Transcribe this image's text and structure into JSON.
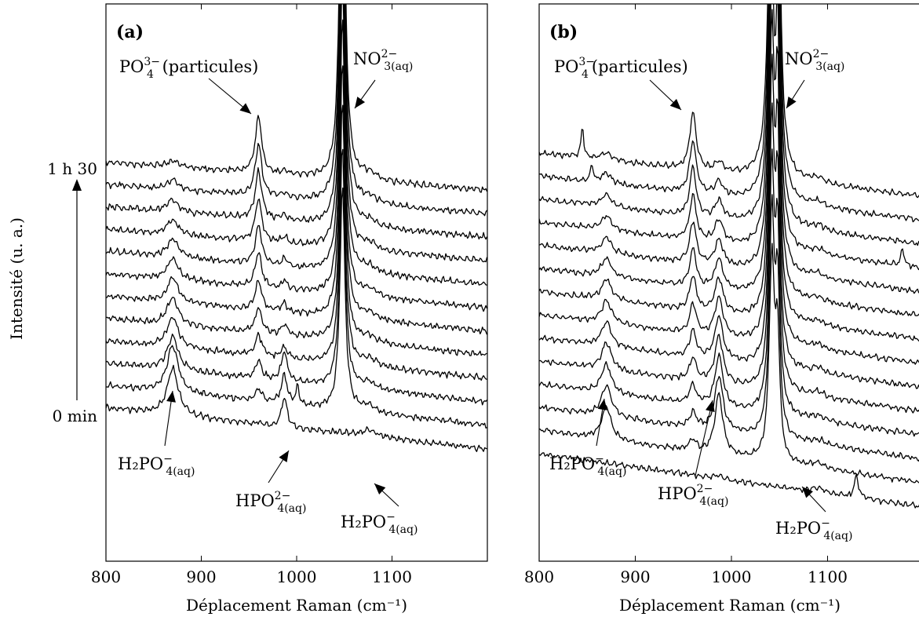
{
  "chart_data": [
    {
      "type": "line",
      "panel_label": "(a)",
      "xlabel": "Déplacement Raman (cm⁻¹)",
      "ylabel": "Intensité (u. a.)",
      "xlim": [
        800,
        1200
      ],
      "xticks": [
        "800",
        "900",
        "1000",
        "1100"
      ],
      "n_spectra": 12,
      "time_start_label": "0 min",
      "time_end_label": "1 h 30",
      "annotations": [
        {
          "main": "PO",
          "sub": "4",
          "sup": "3−",
          "suffix": " (particules)",
          "x": 960
        },
        {
          "main": "NO",
          "sub": "3(aq)",
          "sup": "2−",
          "suffix": "",
          "x": 1050
        },
        {
          "main": "H₂PO",
          "sub": "4(aq)",
          "sup": "−",
          "suffix": "",
          "x": 870
        },
        {
          "main": "HPO",
          "sub": "4(aq)",
          "sup": "2−",
          "suffix": "",
          "x": 987
        },
        {
          "main": "H₂PO",
          "sub": "4(aq)",
          "sup": "−",
          "suffix": "",
          "x": 1076
        }
      ],
      "peaks_cm-1": [
        870,
        960,
        987,
        1001,
        1048,
        1076
      ]
    },
    {
      "type": "line",
      "panel_label": "(b)",
      "xlabel": "Déplacement Raman (cm⁻¹)",
      "xlim": [
        800,
        1200
      ],
      "xticks": [
        "800",
        "900",
        "1000",
        "1100"
      ],
      "n_spectra": 14,
      "annotations": [
        {
          "main": "PO",
          "sub": "4",
          "sup": "3−",
          "suffix": "(particules)",
          "x": 960
        },
        {
          "main": "NO",
          "sub": "3(aq)",
          "sup": "2−",
          "suffix": "",
          "x": 1050
        },
        {
          "main": "H₂PO",
          "sub": "4(aq)",
          "sup": "−",
          "suffix": "",
          "x": 870
        },
        {
          "main": "HPO",
          "sub": "4(aq)",
          "sup": "2−",
          "suffix": "",
          "x": 987
        },
        {
          "main": "H₂PO",
          "sub": "4(aq)",
          "sup": "−",
          "suffix": "",
          "x": 1080
        }
      ],
      "peaks_cm-1": [
        845,
        870,
        960,
        987,
        1042,
        1048,
        1130
      ]
    }
  ]
}
